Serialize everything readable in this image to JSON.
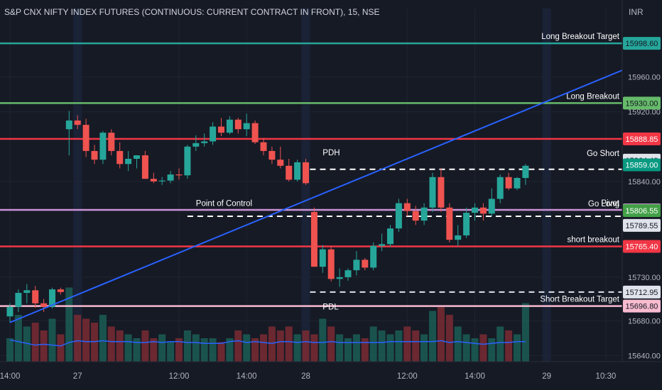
{
  "header": {
    "title": "S&P CNX NIFTY INDEX FUTURES (CONTINUOUS: CURRENT CONTRACT IN FRONT), 15, NSE",
    "currency": "INR"
  },
  "chart_data": {
    "type": "candlestick",
    "title": "S&P CNX NIFTY INDEX FUTURES (CONTINUOUS: CURRENT CONTRACT IN FRONT), 15, NSE",
    "ylim": [
      15633,
      16024
    ],
    "y_ticks": [
      15640,
      15680,
      15730,
      15840,
      15920,
      15960
    ],
    "y_tick_labels": [
      "15640.00",
      "15680.00",
      "15730.00",
      "15840.00",
      "15920.00",
      "15960.00"
    ],
    "x_ticks": [
      {
        "i": 0,
        "label": "14:00"
      },
      {
        "i": 8,
        "label": "27"
      },
      {
        "i": 20,
        "label": "12:00"
      },
      {
        "i": 28,
        "label": "14:00"
      },
      {
        "i": 35,
        "label": "28"
      },
      {
        "i": 47,
        "label": "12:00"
      },
      {
        "i": 55,
        "label": "14:00"
      },
      {
        "i": 63.5,
        "label": "29"
      },
      {
        "i": 70.5,
        "label": "10:30"
      }
    ],
    "candles": [
      {
        "o": 15685,
        "h": 15700,
        "l": 15678,
        "c": 15696,
        "v": 30
      },
      {
        "o": 15696,
        "h": 15716,
        "l": 15690,
        "c": 15712,
        "v": 60
      },
      {
        "o": 15712,
        "h": 15722,
        "l": 15700,
        "c": 15715,
        "v": 45
      },
      {
        "o": 15715,
        "h": 15720,
        "l": 15695,
        "c": 15700,
        "v": 50
      },
      {
        "o": 15700,
        "h": 15705,
        "l": 15690,
        "c": 15696,
        "v": 40
      },
      {
        "o": 15696,
        "h": 15718,
        "l": 15694,
        "c": 15716,
        "v": 55
      },
      {
        "o": 15716,
        "h": 15718,
        "l": 15710,
        "c": 15713,
        "v": 35
      },
      {
        "o": 15900,
        "h": 15921,
        "l": 15870,
        "c": 15910,
        "v": 95
      },
      {
        "o": 15910,
        "h": 15916,
        "l": 15900,
        "c": 15905,
        "v": 60
      },
      {
        "o": 15905,
        "h": 15912,
        "l": 15868,
        "c": 15875,
        "v": 55
      },
      {
        "o": 15875,
        "h": 15882,
        "l": 15860,
        "c": 15865,
        "v": 50
      },
      {
        "o": 15865,
        "h": 15898,
        "l": 15860,
        "c": 15896,
        "v": 60
      },
      {
        "o": 15896,
        "h": 15900,
        "l": 15870,
        "c": 15875,
        "v": 45
      },
      {
        "o": 15875,
        "h": 15885,
        "l": 15855,
        "c": 15860,
        "v": 40
      },
      {
        "o": 15860,
        "h": 15875,
        "l": 15852,
        "c": 15866,
        "v": 35
      },
      {
        "o": 15866,
        "h": 15870,
        "l": 15855,
        "c": 15870,
        "v": 30
      },
      {
        "o": 15870,
        "h": 15875,
        "l": 15845,
        "c": 15843,
        "v": 40
      },
      {
        "o": 15843,
        "h": 15850,
        "l": 15838,
        "c": 15840,
        "v": 30
      },
      {
        "o": 15840,
        "h": 15845,
        "l": 15836,
        "c": 15841,
        "v": 35
      },
      {
        "o": 15841,
        "h": 15852,
        "l": 15838,
        "c": 15848,
        "v": 25
      },
      {
        "o": 15848,
        "h": 15855,
        "l": 15842,
        "c": 15847,
        "v": 30
      },
      {
        "o": 15847,
        "h": 15882,
        "l": 15843,
        "c": 15880,
        "v": 40
      },
      {
        "o": 15880,
        "h": 15893,
        "l": 15875,
        "c": 15884,
        "v": 35
      },
      {
        "o": 15884,
        "h": 15895,
        "l": 15880,
        "c": 15886,
        "v": 30
      },
      {
        "o": 15886,
        "h": 15908,
        "l": 15882,
        "c": 15903,
        "v": 30
      },
      {
        "o": 15903,
        "h": 15913,
        "l": 15892,
        "c": 15896,
        "v": 25
      },
      {
        "o": 15896,
        "h": 15915,
        "l": 15894,
        "c": 15911,
        "v": 30
      },
      {
        "o": 15911,
        "h": 15913,
        "l": 15895,
        "c": 15900,
        "v": 40
      },
      {
        "o": 15900,
        "h": 15918,
        "l": 15892,
        "c": 15907,
        "v": 35
      },
      {
        "o": 15907,
        "h": 15910,
        "l": 15883,
        "c": 15885,
        "v": 30
      },
      {
        "o": 15885,
        "h": 15890,
        "l": 15870,
        "c": 15875,
        "v": 35
      },
      {
        "o": 15875,
        "h": 15880,
        "l": 15860,
        "c": 15865,
        "v": 45
      },
      {
        "o": 15865,
        "h": 15880,
        "l": 15855,
        "c": 15858,
        "v": 40
      },
      {
        "o": 15858,
        "h": 15866,
        "l": 15840,
        "c": 15842,
        "v": 45
      },
      {
        "o": 15842,
        "h": 15865,
        "l": 15840,
        "c": 15862,
        "v": 35
      },
      {
        "o": 15862,
        "h": 15866,
        "l": 15836,
        "c": 15838,
        "v": 40
      },
      {
        "o": 15805,
        "h": 15810,
        "l": 15742,
        "c": 15742,
        "v": 35
      },
      {
        "o": 15742,
        "h": 15767,
        "l": 15735,
        "c": 15762,
        "v": 55
      },
      {
        "o": 15762,
        "h": 15766,
        "l": 15725,
        "c": 15728,
        "v": 45
      },
      {
        "o": 15728,
        "h": 15740,
        "l": 15719,
        "c": 15730,
        "v": 35
      },
      {
        "o": 15730,
        "h": 15740,
        "l": 15726,
        "c": 15738,
        "v": 30
      },
      {
        "o": 15738,
        "h": 15760,
        "l": 15732,
        "c": 15750,
        "v": 35
      },
      {
        "o": 15750,
        "h": 15752,
        "l": 15738,
        "c": 15741,
        "v": 30
      },
      {
        "o": 15741,
        "h": 15770,
        "l": 15738,
        "c": 15766,
        "v": 45
      },
      {
        "o": 15766,
        "h": 15780,
        "l": 15760,
        "c": 15768,
        "v": 40
      },
      {
        "o": 15768,
        "h": 15790,
        "l": 15765,
        "c": 15786,
        "v": 35
      },
      {
        "o": 15786,
        "h": 15820,
        "l": 15782,
        "c": 15815,
        "v": 40
      },
      {
        "o": 15815,
        "h": 15820,
        "l": 15800,
        "c": 15806,
        "v": 45
      },
      {
        "o": 15806,
        "h": 15812,
        "l": 15790,
        "c": 15795,
        "v": 40
      },
      {
        "o": 15795,
        "h": 15815,
        "l": 15790,
        "c": 15810,
        "v": 35
      },
      {
        "o": 15810,
        "h": 15850,
        "l": 15805,
        "c": 15845,
        "v": 65
      },
      {
        "o": 15845,
        "h": 15855,
        "l": 15805,
        "c": 15810,
        "v": 70
      },
      {
        "o": 15810,
        "h": 15815,
        "l": 15770,
        "c": 15773,
        "v": 60
      },
      {
        "o": 15773,
        "h": 15790,
        "l": 15766,
        "c": 15778,
        "v": 45
      },
      {
        "o": 15778,
        "h": 15810,
        "l": 15775,
        "c": 15804,
        "v": 35
      },
      {
        "o": 15804,
        "h": 15815,
        "l": 15795,
        "c": 15810,
        "v": 30
      },
      {
        "o": 15810,
        "h": 15815,
        "l": 15795,
        "c": 15803,
        "v": 35
      },
      {
        "o": 15803,
        "h": 15832,
        "l": 15800,
        "c": 15820,
        "v": 30
      },
      {
        "o": 15820,
        "h": 15848,
        "l": 15815,
        "c": 15845,
        "v": 45
      },
      {
        "o": 15845,
        "h": 15850,
        "l": 15830,
        "c": 15832,
        "v": 40
      },
      {
        "o": 15832,
        "h": 15845,
        "l": 15830,
        "c": 15844,
        "v": 35
      },
      {
        "o": 15844,
        "h": 15860,
        "l": 15836,
        "c": 15858,
        "v": 75
      }
    ],
    "volume_ma": [
      15658,
      15656,
      15654,
      15652,
      15653,
      15652,
      15651,
      15655,
      15657,
      15656,
      15656,
      15657,
      15656,
      15656,
      15656,
      15655,
      15655,
      15656,
      15655,
      15656,
      15656,
      15655,
      15655,
      15654,
      15654,
      15654,
      15656,
      15657,
      15655,
      15656,
      15655,
      15654,
      15656,
      15656,
      15655,
      15656,
      15655,
      15655,
      15656,
      15655,
      15655,
      15655,
      15655,
      15655,
      15655,
      15656,
      15656,
      15656,
      15656,
      15656,
      15656,
      15657,
      15655,
      15656,
      15655,
      15654,
      15653,
      15654,
      15655,
      15655,
      15656,
      15656
    ],
    "levels": [
      {
        "name": "Long Breakout Target",
        "value": "15998.60",
        "color": "#26a69a",
        "style": "solid"
      },
      {
        "name": "Long Breakout",
        "value": "15930.00",
        "color": "#66bb6a",
        "style": "solid"
      },
      {
        "name": "",
        "value": "15888.85",
        "color": "#f23645",
        "style": "solid"
      },
      {
        "name": "Go Short",
        "value": "15864.40",
        "color": "#e0e3eb",
        "style": "none"
      },
      {
        "name": "",
        "value": "15859.00",
        "color": "#089981",
        "style": "none"
      },
      {
        "name": "PDH",
        "value": "15854.00",
        "color": "#ffffff",
        "style": "dashed",
        "start": 35.5,
        "show_label": false
      },
      {
        "name": "Pivot",
        "value": "15807.35",
        "color": "#ce93d8",
        "style": "solid"
      },
      {
        "name": "Go Long",
        "value": "15806.55",
        "color": "#43a047",
        "style": "none"
      },
      {
        "name": "Point of Control",
        "value": "15800.00",
        "color": "#ffffff",
        "style": "dashed",
        "start": 21,
        "show_label": false
      },
      {
        "name": "",
        "value": "15789.55",
        "color": "#e0e3eb",
        "style": "none"
      },
      {
        "name": "short breakout",
        "value": "15765.40",
        "color": "#f23645",
        "style": "solid"
      },
      {
        "name": "",
        "value": "15712.95",
        "color": "#e0e3eb",
        "style": "dashed",
        "start": 35.5
      },
      {
        "name": "Short  Breakout Target",
        "value": "15696.80",
        "color": "#f8bbd0",
        "style": "solid"
      }
    ],
    "price_labels": [
      {
        "text": "15998.60",
        "bg": "#26a69a",
        "fg": "#131722"
      },
      {
        "text": "15930.00",
        "bg": "#66bb6a",
        "fg": "#131722"
      },
      {
        "text": "15888.85",
        "bg": "#f23645",
        "fg": "#ffffff"
      },
      {
        "text": "15864.40",
        "bg": "#e0e3eb",
        "fg": "#131722"
      },
      {
        "text": "15859.00",
        "bg": "#089981",
        "fg": "#ffffff"
      },
      {
        "text": "15807.35",
        "bg": "#ce93d8",
        "fg": "#131722"
      },
      {
        "text": "15806.55",
        "bg": "#43a047",
        "fg": "#ffffff"
      },
      {
        "text": "15789.55",
        "bg": "#e0e3eb",
        "fg": "#131722"
      },
      {
        "text": "15765.40",
        "bg": "#f23645",
        "fg": "#ffffff"
      },
      {
        "text": "15712.95",
        "bg": "#e0e3eb",
        "fg": "#131722"
      },
      {
        "text": "15696.80",
        "bg": "#f8bbd0",
        "fg": "#131722"
      }
    ],
    "annotations": [
      {
        "text": "PDH",
        "x": 37,
        "y": 15870
      },
      {
        "text": "Point of Control",
        "x": 22,
        "y": 15812
      },
      {
        "text": "PDL",
        "x": 37,
        "y": 15693
      }
    ],
    "trendline": {
      "x1": 0,
      "y1": 15678,
      "x2": 76,
      "y2": 15982,
      "color": "#2962ff"
    },
    "colors": {
      "up": "#26a69a",
      "down": "#ef5350",
      "background": "#161a25",
      "grid": "#1f2430",
      "axis_text": "#b2b5be"
    }
  }
}
